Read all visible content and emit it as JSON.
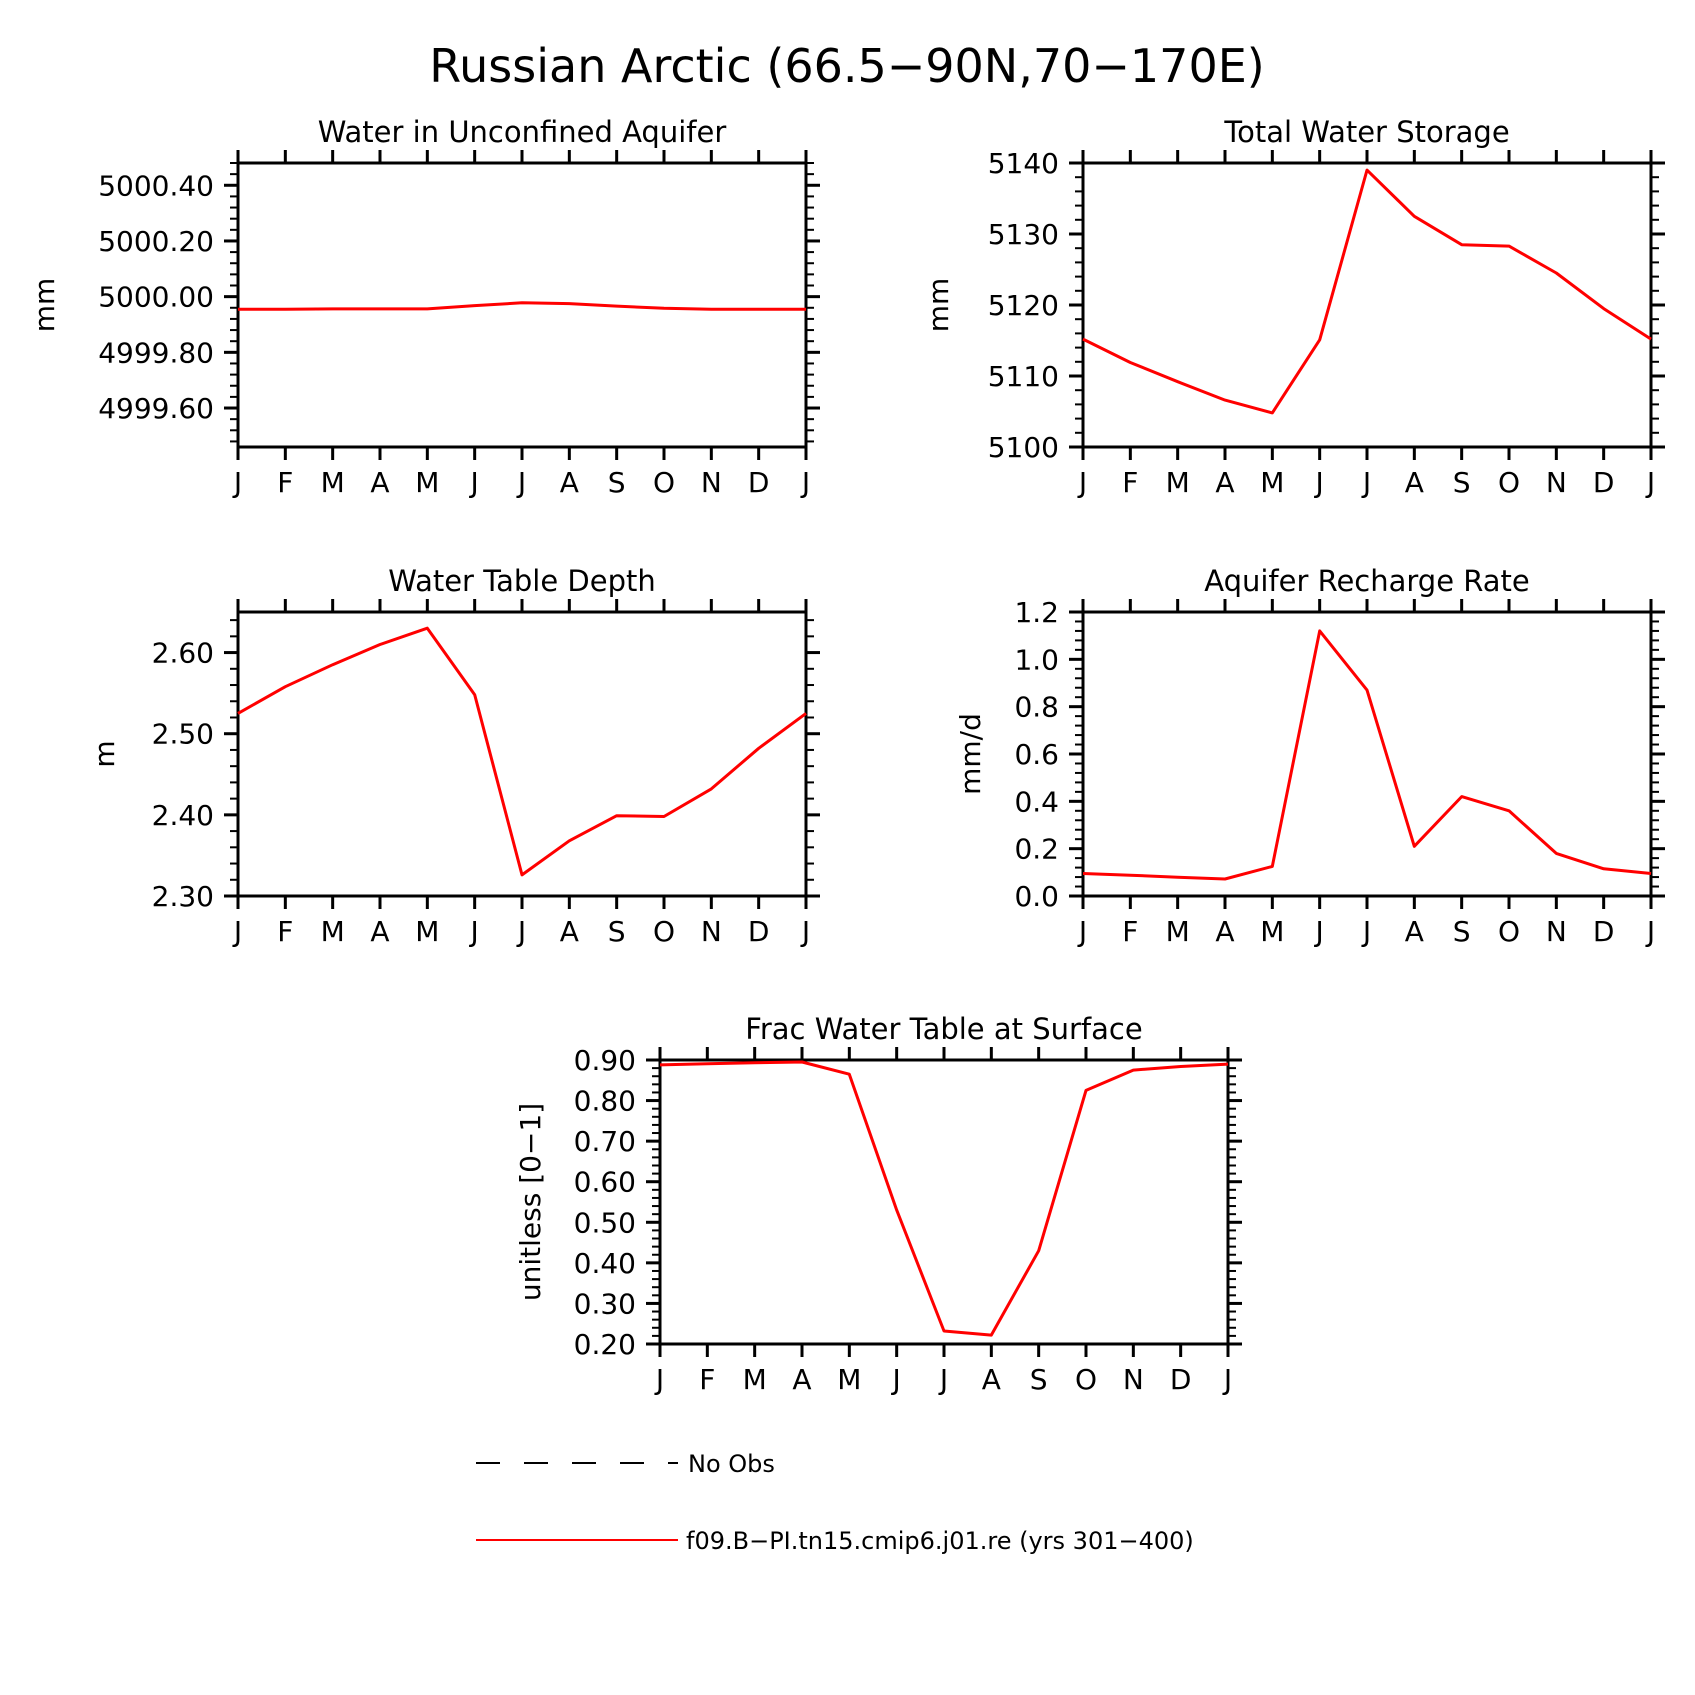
{
  "figure": {
    "title": "Russian Arctic (66.5−90N,70−170E)"
  },
  "colors": {
    "model_line": "#ff0000",
    "obs_line": "#000000",
    "axes": "#000000"
  },
  "chart_data": [
    {
      "type": "line",
      "title": "Water in Unconfined Aquifer",
      "xlabel": "",
      "ylabel": "mm",
      "categories": [
        "J",
        "F",
        "M",
        "A",
        "M",
        "J",
        "J",
        "A",
        "S",
        "O",
        "N",
        "D",
        "J"
      ],
      "yticks": [
        "4999.60",
        "4999.80",
        "5000.00",
        "5000.20",
        "5000.40"
      ],
      "ylim": [
        4999.46,
        5000.48
      ],
      "series": [
        {
          "name": "f09.B−PI.tn15.cmip6.j01.re (yrs 301−400)",
          "values": [
            4999.955,
            4999.955,
            4999.956,
            4999.956,
            4999.956,
            4999.968,
            4999.978,
            4999.975,
            4999.966,
            4999.958,
            4999.955,
            4999.955,
            4999.955
          ]
        }
      ]
    },
    {
      "type": "line",
      "title": "Total Water Storage",
      "xlabel": "",
      "ylabel": "mm",
      "categories": [
        "J",
        "F",
        "M",
        "A",
        "M",
        "J",
        "J",
        "A",
        "S",
        "O",
        "N",
        "D",
        "J"
      ],
      "yticks": [
        "5100",
        "5110",
        "5120",
        "5130",
        "5140"
      ],
      "ylim": [
        5100,
        5140
      ],
      "series": [
        {
          "name": "f09.B−PI.tn15.cmip6.j01.re (yrs 301−400)",
          "values": [
            5115.2,
            5111.9,
            5109.2,
            5106.6,
            5104.8,
            5115.1,
            5139.0,
            5132.5,
            5128.5,
            5128.3,
            5124.5,
            5119.5,
            5115.2
          ]
        }
      ]
    },
    {
      "type": "line",
      "title": "Water Table Depth",
      "xlabel": "",
      "ylabel": "m",
      "categories": [
        "J",
        "F",
        "M",
        "A",
        "M",
        "J",
        "J",
        "A",
        "S",
        "O",
        "N",
        "D",
        "J"
      ],
      "yticks": [
        "2.30",
        "2.40",
        "2.50",
        "2.60"
      ],
      "ylim": [
        2.3,
        2.65
      ],
      "series": [
        {
          "name": "f09.B−PI.tn15.cmip6.j01.re (yrs 301−400)",
          "values": [
            2.525,
            2.558,
            2.585,
            2.61,
            2.63,
            2.548,
            2.326,
            2.368,
            2.399,
            2.398,
            2.432,
            2.482,
            2.525
          ]
        }
      ]
    },
    {
      "type": "line",
      "title": "Aquifer Recharge Rate",
      "xlabel": "",
      "ylabel": "mm/d",
      "categories": [
        "J",
        "F",
        "M",
        "A",
        "M",
        "J",
        "J",
        "A",
        "S",
        "O",
        "N",
        "D",
        "J"
      ],
      "yticks": [
        "0.0",
        "0.2",
        "0.4",
        "0.6",
        "0.8",
        "1.0",
        "1.2"
      ],
      "ylim": [
        0.0,
        1.2
      ],
      "series": [
        {
          "name": "f09.B−PI.tn15.cmip6.j01.re (yrs 301−400)",
          "values": [
            0.095,
            0.088,
            0.079,
            0.072,
            0.125,
            1.12,
            0.87,
            0.21,
            0.42,
            0.36,
            0.18,
            0.115,
            0.095
          ]
        }
      ]
    },
    {
      "type": "line",
      "title": "Frac Water Table at Surface",
      "xlabel": "",
      "ylabel": "unitless [0−1]",
      "categories": [
        "J",
        "F",
        "M",
        "A",
        "M",
        "J",
        "J",
        "A",
        "S",
        "O",
        "N",
        "D",
        "J"
      ],
      "yticks": [
        "0.20",
        "0.30",
        "0.40",
        "0.50",
        "0.60",
        "0.70",
        "0.80",
        "0.90"
      ],
      "ylim": [
        0.2,
        0.9
      ],
      "series": [
        {
          "name": "f09.B−PI.tn15.cmip6.j01.re (yrs 301−400)",
          "values": [
            0.888,
            0.891,
            0.893,
            0.895,
            0.865,
            0.53,
            0.232,
            0.222,
            0.43,
            0.825,
            0.875,
            0.884,
            0.89
          ]
        }
      ]
    }
  ],
  "legend": {
    "items": [
      {
        "label": "No Obs",
        "style": "dashed",
        "color": "#000000"
      },
      {
        "label": "f09.B−PI.tn15.cmip6.j01.re (yrs 301−400)",
        "style": "solid",
        "color": "#ff0000"
      }
    ]
  }
}
